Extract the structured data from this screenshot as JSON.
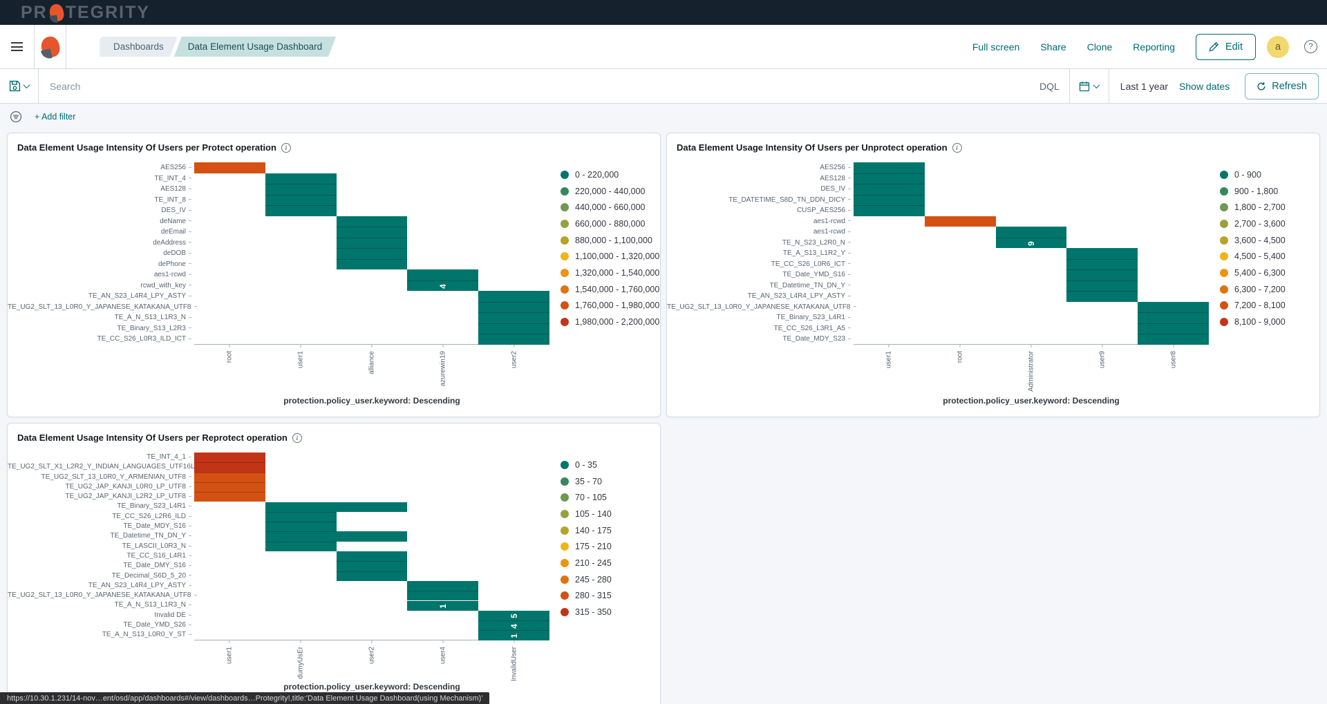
{
  "topbar": {
    "logo_pr": "PR",
    "logo_rest": "TEGRITY"
  },
  "navbar": {
    "breadcrumbs": [
      "Dashboards",
      "Data Element Usage Dashboard"
    ],
    "actions": [
      "Full screen",
      "Share",
      "Clone",
      "Reporting"
    ],
    "edit_label": "Edit",
    "avatar": "a"
  },
  "querybar": {
    "search_placeholder": "Search",
    "dql": "DQL",
    "time_range": "Last 1 year",
    "show_dates": "Show dates",
    "refresh": "Refresh"
  },
  "filterbar": {
    "add_filter": "+ Add filter"
  },
  "colors": {
    "accent_teal": "#006a72",
    "topbar_bg": "#16212e",
    "breadcrumb_active_bg": "#c6e0e0",
    "heatmap_palette": [
      "#00756b",
      "#35875f",
      "#6c9a52",
      "#96a23c",
      "#b7a327",
      "#f2b415",
      "#ef9310",
      "#e2720f",
      "#d45113",
      "#c23418"
    ]
  },
  "chart_data": [
    {
      "type": "heatmap",
      "title": "Data Element Usage Intensity Of Users per Protect operation",
      "axis_title": "protection.policy_user.keyword: Descending",
      "x_labels": [
        "root",
        "user1",
        "alliance",
        "azurewin19",
        "user2"
      ],
      "y_labels": [
        "AES256",
        "TE_INT_4",
        "AES128",
        "TE_INT_8",
        "DES_IV",
        "deName",
        "deEmail",
        "deAddress",
        "deDOB",
        "dePhone",
        "aes1-rcwd",
        "rcwd_with_key",
        "TE_AN_S23_L4R4_LPY_ASTY",
        "TE_UG2_SLT_13_L0R0_Y_JAPANESE_KATAKANA_UTF8",
        "TE_A_N_S13_L1R3_N",
        "TE_Binary_S13_L2R3",
        "TE_CC_S26_L0R3_ILD_ICT"
      ],
      "legend": [
        "0 - 220,000",
        "220,000 - 440,000",
        "440,000 - 660,000",
        "660,000 - 880,000",
        "880,000 - 1,100,000",
        "1,100,000 - 1,320,000",
        "1,320,000 - 1,540,000",
        "1,540,000 - 1,760,000",
        "1,760,000 - 1,980,000",
        "1,980,000 - 2,200,000"
      ],
      "cells": [
        {
          "c": 0,
          "r": 0,
          "b": 8
        },
        {
          "c": 1,
          "r": 1,
          "b": 0
        },
        {
          "c": 1,
          "r": 2,
          "b": 0
        },
        {
          "c": 1,
          "r": 3,
          "b": 0
        },
        {
          "c": 1,
          "r": 4,
          "b": 0
        },
        {
          "c": 2,
          "r": 5,
          "b": 0
        },
        {
          "c": 2,
          "r": 6,
          "b": 0
        },
        {
          "c": 2,
          "r": 7,
          "b": 0
        },
        {
          "c": 2,
          "r": 8,
          "b": 0
        },
        {
          "c": 2,
          "r": 9,
          "b": 0
        },
        {
          "c": 3,
          "r": 10,
          "b": 0
        },
        {
          "c": 3,
          "r": 11,
          "b": 0,
          "v": "4"
        },
        {
          "c": 4,
          "r": 12,
          "b": 0
        },
        {
          "c": 4,
          "r": 13,
          "b": 0
        },
        {
          "c": 4,
          "r": 14,
          "b": 0
        },
        {
          "c": 4,
          "r": 15,
          "b": 0
        },
        {
          "c": 4,
          "r": 16,
          "b": 0
        }
      ]
    },
    {
      "type": "heatmap",
      "title": "Data Element Usage Intensity Of Users per Unprotect operation",
      "axis_title": "protection.policy_user.keyword: Descending",
      "x_labels": [
        "user1",
        "root",
        "Administrator",
        "user9",
        "user8"
      ],
      "y_labels": [
        "AES256",
        "AES128",
        "DES_IV",
        "TE_DATETIME_S8D_TN_DDN_DICY",
        "CUSP_AES256",
        "aes1-rcwd",
        "aes1-rcwd",
        "TE_N_S23_L2R0_N",
        "TE_A_S13_L1R2_Y",
        "TE_CC_S26_L0R6_ICT",
        "TE_Date_YMD_S16",
        "TE_Datetime_TN_DN_Y",
        "TE_AN_S23_L4R4_LPY_ASTY",
        "TE_UG2_SLT_13_L0R0_Y_JAPANESE_KATAKANA_UTF8",
        "TE_Binary_S23_L4R1",
        "TE_CC_S26_L3R1_A5",
        "TE_Date_MDY_S23"
      ],
      "legend": [
        "0 - 900",
        "900 - 1,800",
        "1,800 - 2,700",
        "2,700 - 3,600",
        "3,600 - 4,500",
        "4,500 - 5,400",
        "5,400 - 6,300",
        "6,300 - 7,200",
        "7,200 - 8,100",
        "8,100 - 9,000"
      ],
      "cells": [
        {
          "c": 0,
          "r": 0,
          "b": 0
        },
        {
          "c": 0,
          "r": 1,
          "b": 0
        },
        {
          "c": 0,
          "r": 2,
          "b": 0
        },
        {
          "c": 0,
          "r": 3,
          "b": 0
        },
        {
          "c": 0,
          "r": 4,
          "b": 0
        },
        {
          "c": 1,
          "r": 5,
          "b": 8
        },
        {
          "c": 2,
          "r": 6,
          "b": 0
        },
        {
          "c": 2,
          "r": 7,
          "b": 0,
          "v": "9"
        },
        {
          "c": 3,
          "r": 8,
          "b": 0
        },
        {
          "c": 3,
          "r": 9,
          "b": 0
        },
        {
          "c": 3,
          "r": 10,
          "b": 0
        },
        {
          "c": 3,
          "r": 11,
          "b": 0
        },
        {
          "c": 3,
          "r": 12,
          "b": 0
        },
        {
          "c": 4,
          "r": 13,
          "b": 0
        },
        {
          "c": 4,
          "r": 14,
          "b": 0
        },
        {
          "c": 4,
          "r": 15,
          "b": 0
        },
        {
          "c": 4,
          "r": 16,
          "b": 0
        }
      ]
    },
    {
      "type": "heatmap",
      "title": "Data Element Usage Intensity Of Users per Reprotect operation",
      "axis_title": "protection.policy_user.keyword: Descending",
      "x_labels": [
        "user1",
        "dumyUsEr",
        "user2",
        "user4",
        "InvalidUser"
      ],
      "y_labels": [
        "TE_INT_4_1",
        "TE_UG2_SLT_X1_L2R2_Y_INDIAN_LANGUAGES_UTF16LE",
        "TE_UG2_SLT_13_L0R0_Y_ARMENIAN_UTF8",
        "TE_UG2_JAP_KANJI_L0R0_LP_UTF8",
        "TE_UG2_JAP_KANJI_L2R2_LP_UTF8",
        "TE_Binary_S23_L4R1",
        "TE_CC_S26_L2R6_ILD",
        "TE_Date_MDY_S16",
        "TE_Datetime_TN_DN_Y",
        "TE_LASCII_L0R3_N",
        "TE_CC_S16_L4R1",
        "TE_Date_DMY_S16",
        "TE_Decimal_S6D_5_20",
        "TE_AN_S23_L4R4_LPY_ASTY",
        "TE_UG2_SLT_13_L0R0_Y_JAPANESE_KATAKANA_UTF8",
        "TE_A_N_S13_L1R3_N",
        "Invalid DE",
        "TE_Date_YMD_S26",
        "TE_A_N_S13_L0R0_Y_ST"
      ],
      "legend": [
        "0 - 35",
        "35 - 70",
        "70 - 105",
        "105 - 140",
        "140 - 175",
        "175 - 210",
        "210 - 245",
        "245 - 280",
        "280 - 315",
        "315 - 350"
      ],
      "cells": [
        {
          "c": 0,
          "r": 0,
          "b": 9
        },
        {
          "c": 0,
          "r": 1,
          "b": 9
        },
        {
          "c": 0,
          "r": 2,
          "b": 8
        },
        {
          "c": 0,
          "r": 3,
          "b": 8
        },
        {
          "c": 0,
          "r": 4,
          "b": 8
        },
        {
          "c": 1,
          "r": 5,
          "b": 0
        },
        {
          "c": 1,
          "r": 6,
          "b": 0
        },
        {
          "c": 1,
          "r": 7,
          "b": 0
        },
        {
          "c": 1,
          "r": 8,
          "b": 0
        },
        {
          "c": 1,
          "r": 9,
          "b": 0
        },
        {
          "c": 2,
          "r": 5,
          "b": 0
        },
        {
          "c": 2,
          "r": 8,
          "b": 0
        },
        {
          "c": 2,
          "r": 10,
          "b": 0
        },
        {
          "c": 2,
          "r": 11,
          "b": 0
        },
        {
          "c": 2,
          "r": 12,
          "b": 0
        },
        {
          "c": 3,
          "r": 13,
          "b": 0
        },
        {
          "c": 3,
          "r": 14,
          "b": 0
        },
        {
          "c": 3,
          "r": 15,
          "b": 0,
          "v": "1"
        },
        {
          "c": 4,
          "r": 16,
          "b": 0,
          "v": "5"
        },
        {
          "c": 4,
          "r": 17,
          "b": 0,
          "v": "4"
        },
        {
          "c": 4,
          "r": 18,
          "b": 0,
          "v": "1"
        }
      ]
    }
  ],
  "status_bar": {
    "url_text": "https://10.30.1.231/14-nov…ent/osd/app/dashboards#/view/dashboards…Protegrity!,title:'Data Element Usage Dashboard(using Mechanism)'"
  }
}
